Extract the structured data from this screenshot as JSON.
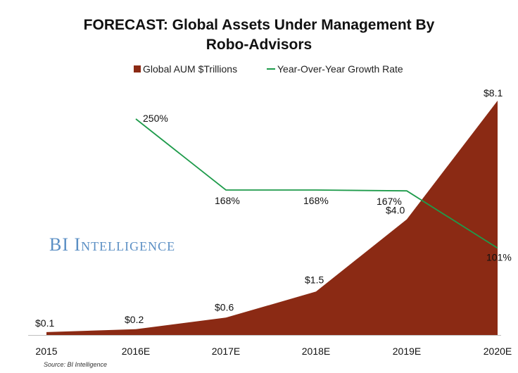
{
  "chart_data": {
    "type": "area",
    "title": "FORECAST: Global Assets Under Management By",
    "title_line2": "Robo-Advisors",
    "categories": [
      "2015",
      "2016E",
      "2017E",
      "2018E",
      "2019E",
      "2020E"
    ],
    "series": [
      {
        "name": "Global AUM $Trillions",
        "type": "area",
        "values": [
          0.1,
          0.2,
          0.6,
          1.5,
          4.0,
          8.1
        ],
        "labels": [
          "$0.1",
          "$0.2",
          "$0.6",
          "$1.5",
          "$4.0",
          "$8.1"
        ],
        "color": "#8B2A14"
      },
      {
        "name": "Year-Over-Year Growth Rate",
        "type": "line",
        "values": [
          null,
          250,
          168,
          168,
          167,
          101
        ],
        "labels": [
          "",
          "250%",
          "168%",
          "168%",
          "167%",
          "101%"
        ],
        "color": "#1E9B4B"
      }
    ],
    "ylim_area": [
      0,
      8.1
    ],
    "ylim_line": [
      0,
      290
    ],
    "legend_position": "top",
    "grid": false
  },
  "watermark": "BI Intelligence",
  "watermark_color": "#5B8FC4",
  "source": "Source: BI Intelligence"
}
